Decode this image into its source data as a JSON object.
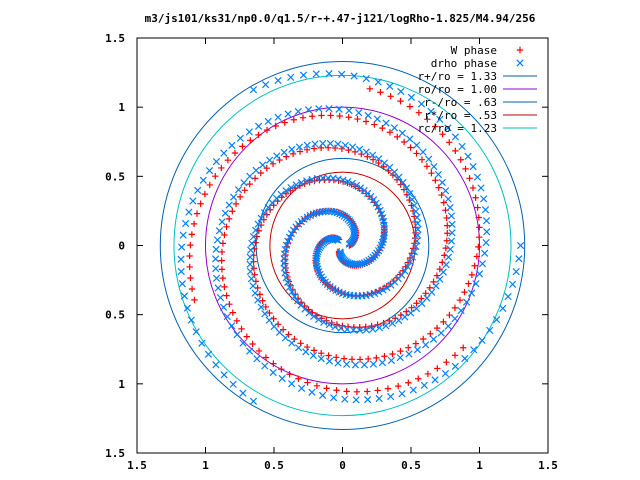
{
  "chart_data": {
    "type": "scatter",
    "title": "m3/js101/ks31/np0.0/q1.5/r-+.47-j121/logRho-1.825/M4.94/256",
    "xlim": [
      -1.5,
      1.5
    ],
    "ylim": [
      -1.5,
      1.5
    ],
    "x_tick_labels": [
      "1.5",
      "1",
      "0.5",
      "0",
      "0.5",
      "1",
      "1.5"
    ],
    "y_tick_labels": [
      "1.5",
      "1",
      "0.5",
      "0",
      "0.5",
      "1",
      "1.5"
    ],
    "tick_values": [
      -1.5,
      -1,
      -0.5,
      0,
      0.5,
      1,
      1.5
    ],
    "grid": false,
    "legend_position": "top-right",
    "series": [
      {
        "name": "W phase",
        "marker": "+",
        "color": "#ff0000",
        "arms": [
          {
            "r_start": 0.05,
            "r_end": 1.15,
            "theta_start_deg": 0,
            "theta_end_deg": 560
          },
          {
            "r_start": 0.05,
            "r_end": 1.15,
            "theta_start_deg": 120,
            "theta_end_deg": 680
          },
          {
            "r_start": 0.05,
            "r_end": 1.15,
            "theta_start_deg": 240,
            "theta_end_deg": 800
          }
        ]
      },
      {
        "name": "drho phase",
        "marker": "x",
        "color": "#0080ff",
        "arms": [
          {
            "r_start": 0.05,
            "r_end": 1.3,
            "theta_start_deg": 10,
            "theta_end_deg": 600
          },
          {
            "r_start": 0.05,
            "r_end": 1.3,
            "theta_start_deg": 130,
            "theta_end_deg": 720
          },
          {
            "r_start": 0.05,
            "r_end": 1.3,
            "theta_start_deg": 250,
            "theta_end_deg": 840
          }
        ]
      }
    ],
    "circles": [
      {
        "name": "r+/ro = 1.33",
        "r": 1.33,
        "color": "#0060ad"
      },
      {
        "name": "ro/ro = 1.00",
        "r": 1.0,
        "color": "#9400d3"
      },
      {
        "name": "r-/ro = .63",
        "r": 0.63,
        "color": "#0060ad"
      },
      {
        "name": "r*/ro = .53",
        "r": 0.53,
        "color": "#c00000"
      },
      {
        "name": "rc/ro = 1.23",
        "r": 1.23,
        "color": "#00c0c0"
      }
    ]
  }
}
